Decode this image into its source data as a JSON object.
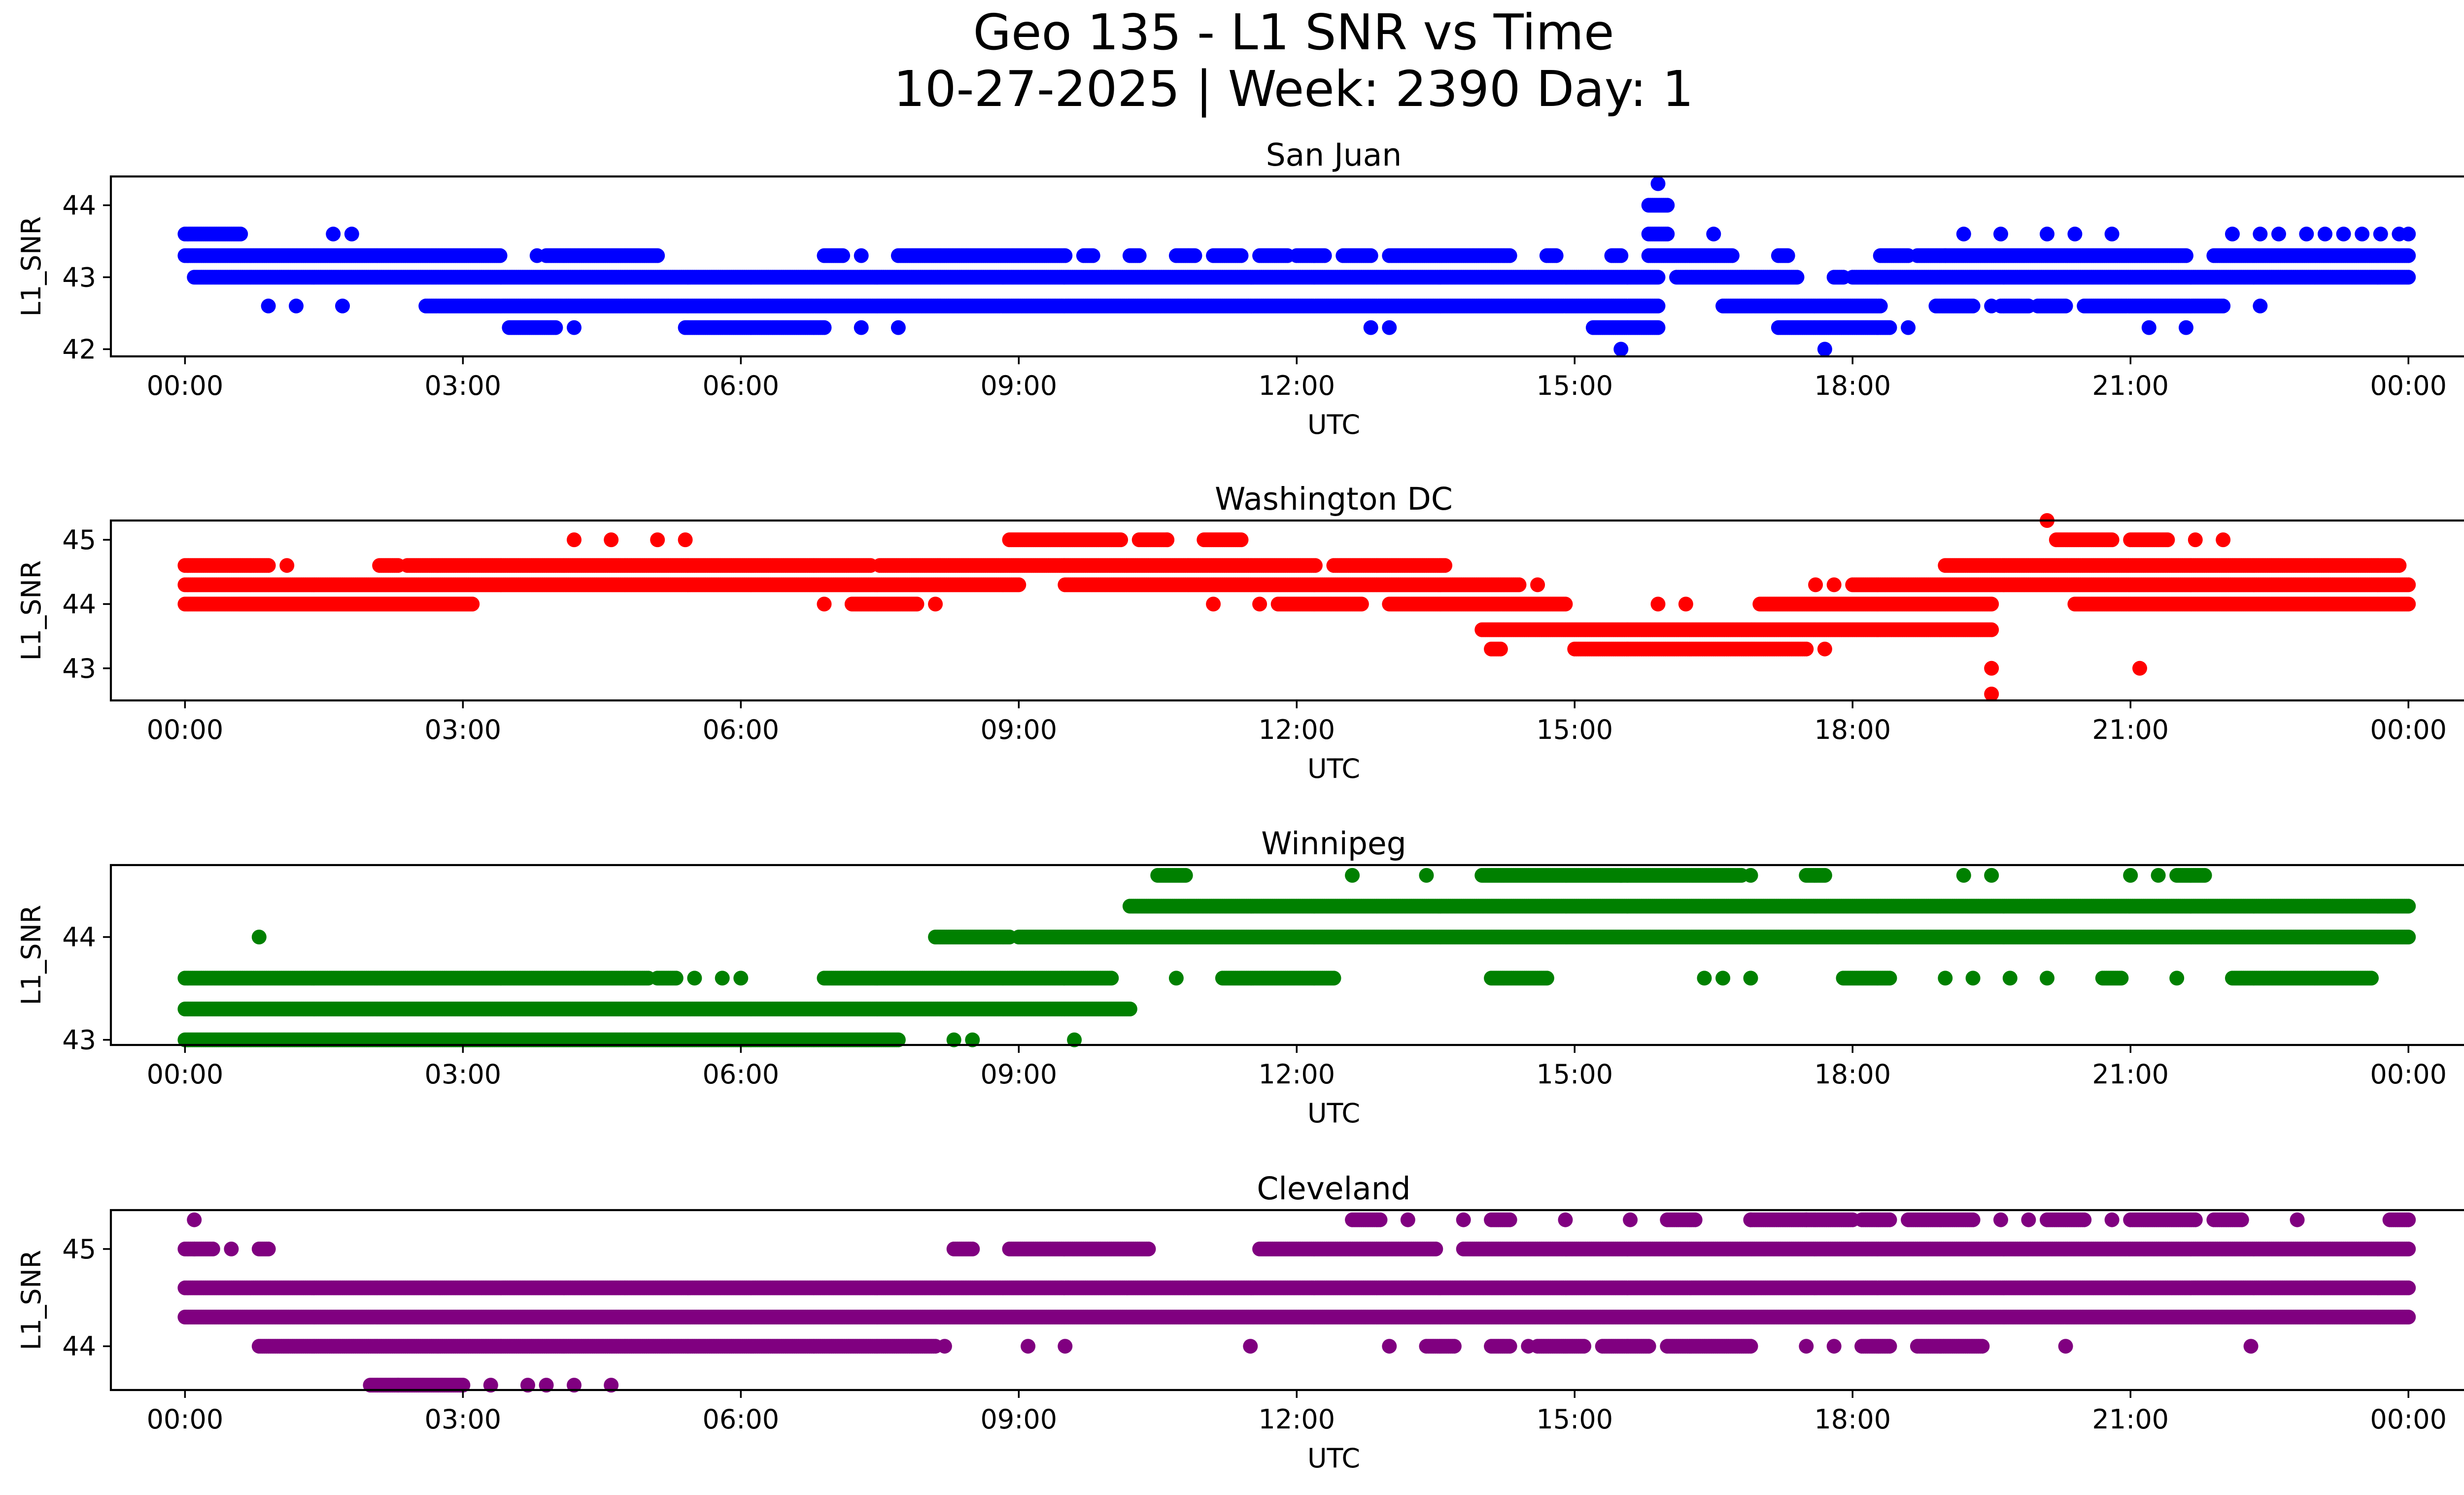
{
  "figure": {
    "title_line1": "Geo 135 - L1 SNR vs Time",
    "title_line2": "10-27-2025 | Week: 2390 Day: 1"
  },
  "chart_data": [
    {
      "type": "scatter",
      "title": "San Juan",
      "xlabel": "UTC",
      "ylabel": "L1_SNR",
      "color": "#0000ff",
      "xlim": [
        -0.8,
        25.6
      ],
      "ylim": [
        41.9,
        44.4
      ],
      "xticks": [
        0,
        3,
        6,
        9,
        12,
        15,
        18,
        21,
        24
      ],
      "xtick_labels": [
        "00:00",
        "03:00",
        "06:00",
        "09:00",
        "12:00",
        "15:00",
        "18:00",
        "21:00",
        "00:00"
      ],
      "yticks": [
        42,
        43,
        44
      ],
      "ytick_labels": [
        "42",
        "43",
        "44"
      ],
      "series": [
        {
          "y": 43.3,
          "segments": [
            [
              0.0,
              3.4
            ],
            [
              3.9,
              5.1
            ],
            [
              6.9,
              7.1
            ],
            [
              7.7,
              9.5
            ],
            [
              9.7,
              9.8
            ],
            [
              10.2,
              10.3
            ],
            [
              10.7,
              10.9
            ],
            [
              11.1,
              11.4
            ],
            [
              11.6,
              11.9
            ],
            [
              12.0,
              12.3
            ],
            [
              12.5,
              12.8
            ],
            [
              13.0,
              14.3
            ],
            [
              14.7,
              14.8
            ],
            [
              15.4,
              15.5
            ],
            [
              15.8,
              16.7
            ],
            [
              17.2,
              17.3
            ],
            [
              18.3,
              18.6
            ],
            [
              18.7,
              19.0
            ],
            [
              19.0,
              21.6
            ],
            [
              21.9,
              24.0
            ]
          ],
          "points": [
            3.8,
            7.3
          ]
        },
        {
          "y": 43.0,
          "segments": [
            [
              0.1,
              15.9
            ],
            [
              16.1,
              17.4
            ],
            [
              17.8,
              17.9
            ],
            [
              18.0,
              24.0
            ]
          ],
          "points": []
        },
        {
          "y": 42.6,
          "segments": [
            [
              2.6,
              15.9
            ],
            [
              16.6,
              18.3
            ],
            [
              18.9,
              19.3
            ],
            [
              19.6,
              19.9
            ],
            [
              20.0,
              20.3
            ],
            [
              20.5,
              22.0
            ]
          ],
          "points": [
            0.9,
            1.2,
            1.7,
            19.5,
            22.4
          ]
        },
        {
          "y": 43.6,
          "segments": [
            [
              0.0,
              0.6
            ],
            [
              15.8,
              16.0
            ]
          ],
          "points": [
            1.6,
            1.8,
            16.5,
            19.2,
            19.6,
            20.1,
            20.4,
            20.8,
            22.1,
            22.4,
            22.6,
            22.9,
            23.1,
            23.3,
            23.5,
            23.7,
            23.9,
            24.0
          ]
        },
        {
          "y": 42.3,
          "segments": [
            [
              3.5,
              4.0
            ],
            [
              5.4,
              6.9
            ],
            [
              15.2,
              15.9
            ],
            [
              17.2,
              18.4
            ]
          ],
          "points": [
            4.2,
            7.3,
            7.7,
            12.8,
            13.0,
            18.6,
            21.2,
            21.6
          ]
        },
        {
          "y": 42.0,
          "segments": [],
          "points": [
            15.5,
            17.7
          ]
        },
        {
          "y": 44.0,
          "segments": [
            [
              15.8,
              16.0
            ]
          ],
          "points": []
        },
        {
          "y": 44.3,
          "segments": [],
          "points": [
            15.9
          ]
        }
      ]
    },
    {
      "type": "scatter",
      "title": "Washington DC",
      "xlabel": "UTC",
      "ylabel": "L1_SNR",
      "color": "#ff0000",
      "xlim": [
        -0.8,
        25.6
      ],
      "ylim": [
        42.5,
        45.3
      ],
      "xticks": [
        0,
        3,
        6,
        9,
        12,
        15,
        18,
        21,
        24
      ],
      "xtick_labels": [
        "00:00",
        "03:00",
        "06:00",
        "09:00",
        "12:00",
        "15:00",
        "18:00",
        "21:00",
        "00:00"
      ],
      "yticks": [
        43,
        44,
        45
      ],
      "ytick_labels": [
        "43",
        "44",
        "45"
      ],
      "series": [
        {
          "y": 44.6,
          "segments": [
            [
              0.0,
              0.9
            ],
            [
              2.1,
              2.3
            ],
            [
              2.4,
              7.4
            ],
            [
              7.5,
              12.2
            ],
            [
              12.4,
              13.6
            ],
            [
              19.0,
              23.9
            ]
          ],
          "points": [
            1.1
          ]
        },
        {
          "y": 44.3,
          "segments": [
            [
              0.0,
              9.0
            ],
            [
              9.5,
              14.4
            ],
            [
              18.0,
              24.0
            ]
          ],
          "points": [
            14.6,
            17.6,
            17.8
          ]
        },
        {
          "y": 44.0,
          "segments": [
            [
              0.0,
              3.1
            ],
            [
              0.6,
              3.1
            ],
            [
              7.2,
              7.9
            ],
            [
              11.8,
              12.7
            ],
            [
              13.0,
              14.9
            ],
            [
              17.0,
              19.5
            ],
            [
              20.4,
              24.0
            ]
          ],
          "points": [
            6.9,
            8.1,
            11.1,
            11.6,
            15.9,
            16.2
          ]
        },
        {
          "y": 45.0,
          "segments": [
            [
              8.9,
              10.1
            ],
            [
              10.3,
              10.6
            ],
            [
              11.0,
              11.4
            ],
            [
              20.2,
              20.8
            ],
            [
              21.0,
              21.4
            ]
          ],
          "points": [
            4.2,
            4.6,
            5.1,
            5.4,
            10.6,
            21.7,
            22.0
          ]
        },
        {
          "y": 43.6,
          "segments": [
            [
              14.0,
              19.5
            ]
          ],
          "points": []
        },
        {
          "y": 43.3,
          "segments": [
            [
              14.1,
              14.2
            ],
            [
              15.0,
              17.5
            ]
          ],
          "points": [
            17.7
          ]
        },
        {
          "y": 45.3,
          "segments": [],
          "points": [
            20.1
          ]
        },
        {
          "y": 43.0,
          "segments": [],
          "points": [
            19.5,
            21.1
          ]
        },
        {
          "y": 42.6,
          "segments": [],
          "points": [
            19.5
          ]
        }
      ]
    },
    {
      "type": "scatter",
      "title": "Winnipeg",
      "xlabel": "UTC",
      "ylabel": "L1_SNR",
      "color": "#008000",
      "xlim": [
        -0.8,
        25.6
      ],
      "ylim": [
        42.95,
        44.7
      ],
      "xticks": [
        0,
        3,
        6,
        9,
        12,
        15,
        18,
        21,
        24
      ],
      "xtick_labels": [
        "00:00",
        "03:00",
        "06:00",
        "09:00",
        "12:00",
        "15:00",
        "18:00",
        "21:00",
        "00:00"
      ],
      "yticks": [
        43,
        44
      ],
      "ytick_labels": [
        "43",
        "44"
      ],
      "series": [
        {
          "y": 43.3,
          "segments": [
            [
              0.0,
              10.2
            ]
          ],
          "points": []
        },
        {
          "y": 43.0,
          "segments": [
            [
              0.0,
              7.7
            ]
          ],
          "points": [
            8.3,
            8.5,
            9.6
          ]
        },
        {
          "y": 43.6,
          "segments": [
            [
              0.0,
              5.0
            ],
            [
              5.1,
              5.3
            ],
            [
              6.9,
              10.0
            ],
            [
              11.2,
              12.4
            ],
            [
              14.1,
              14.7
            ],
            [
              17.9,
              18.4
            ],
            [
              20.7,
              20.9
            ],
            [
              22.1,
              23.6
            ]
          ],
          "points": [
            5.5,
            5.8,
            6.0,
            10.7,
            16.4,
            16.6,
            16.9,
            19.0,
            19.3,
            19.7,
            20.1,
            21.5
          ]
        },
        {
          "y": 44.0,
          "segments": [
            [
              8.1,
              8.9
            ],
            [
              9.0,
              24.0
            ]
          ],
          "points": [
            0.8
          ]
        },
        {
          "y": 44.3,
          "segments": [
            [
              10.2,
              24.0
            ]
          ],
          "points": []
        },
        {
          "y": 44.6,
          "segments": [
            [
              10.5,
              10.8
            ],
            [
              14.0,
              15.5
            ],
            [
              15.5,
              16.8
            ],
            [
              17.5,
              17.7
            ],
            [
              21.5,
              21.8
            ]
          ],
          "points": [
            12.6,
            13.4,
            16.9,
            19.2,
            19.5,
            21.0,
            21.3
          ]
        }
      ]
    },
    {
      "type": "scatter",
      "title": "Cleveland",
      "xlabel": "UTC",
      "ylabel": "L1_SNR",
      "color": "#800080",
      "xlim": [
        -0.8,
        25.6
      ],
      "ylim": [
        43.55,
        45.4
      ],
      "xticks": [
        0,
        3,
        6,
        9,
        12,
        15,
        18,
        21,
        24
      ],
      "xtick_labels": [
        "00:00",
        "03:00",
        "06:00",
        "09:00",
        "12:00",
        "15:00",
        "18:00",
        "21:00",
        "00:00"
      ],
      "yticks": [
        44,
        45
      ],
      "ytick_labels": [
        "44",
        "45"
      ],
      "series": [
        {
          "y": 44.6,
          "segments": [
            [
              0.0,
              24.0
            ]
          ],
          "points": []
        },
        {
          "y": 44.3,
          "segments": [
            [
              0.0,
              24.0
            ]
          ],
          "points": []
        },
        {
          "y": 44.0,
          "segments": [
            [
              0.8,
              8.1
            ],
            [
              13.4,
              13.7
            ],
            [
              14.1,
              14.3
            ],
            [
              14.6,
              15.1
            ],
            [
              15.3,
              15.8
            ],
            [
              16.0,
              16.9
            ],
            [
              18.1,
              18.4
            ],
            [
              18.7,
              19.4
            ]
          ],
          "points": [
            8.2,
            9.1,
            9.5,
            11.5,
            13.0,
            14.5,
            17.5,
            17.8,
            20.3,
            22.3
          ]
        },
        {
          "y": 45.0,
          "segments": [
            [
              0.0,
              0.3
            ],
            [
              0.8,
              0.9
            ],
            [
              8.3,
              8.5
            ],
            [
              8.9,
              10.4
            ],
            [
              11.6,
              13.5
            ],
            [
              13.8,
              24.0
            ]
          ],
          "points": [
            0.1,
            0.5
          ]
        },
        {
          "y": 45.3,
          "segments": [
            [
              12.6,
              12.9
            ],
            [
              14.1,
              14.3
            ],
            [
              16.0,
              16.3
            ],
            [
              16.9,
              17.5
            ],
            [
              17.5,
              18.0
            ],
            [
              18.1,
              18.4
            ],
            [
              18.6,
              19.3
            ],
            [
              20.1,
              20.5
            ],
            [
              21.0,
              21.7
            ],
            [
              21.9,
              22.2
            ],
            [
              23.8,
              24.0
            ]
          ],
          "points": [
            0.1,
            13.2,
            13.8,
            14.9,
            15.6,
            16.9,
            19.6,
            19.9,
            20.8,
            22.8
          ]
        },
        {
          "y": 43.6,
          "segments": [
            [
              2.0,
              2.3
            ],
            [
              2.3,
              3.0
            ]
          ],
          "points": [
            3.3,
            3.7,
            3.9,
            4.2,
            4.6
          ]
        }
      ]
    }
  ]
}
